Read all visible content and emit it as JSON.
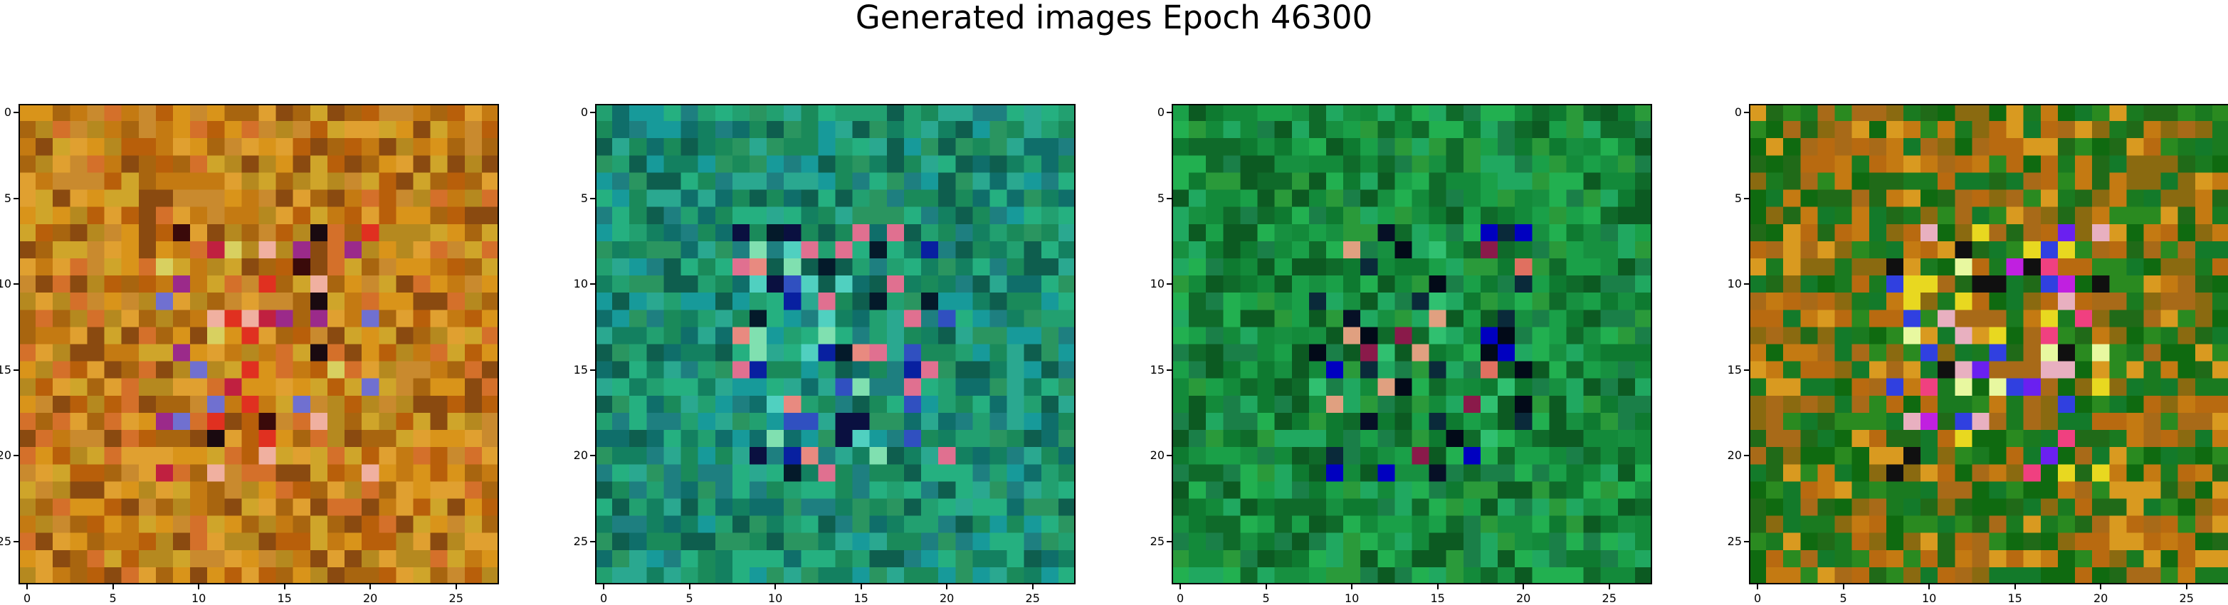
{
  "title": "Generated images Epoch 46300",
  "chart_data": [
    {
      "type": "heatmap",
      "grid": [
        28,
        28
      ],
      "xlim": [
        -0.5,
        27.5
      ],
      "ylim": [
        27.5,
        -0.5
      ],
      "xticks": [
        0,
        5,
        10,
        15,
        20,
        25
      ],
      "yticks": [
        0,
        5,
        10,
        15,
        20,
        25
      ],
      "xtick_labels": [
        "0",
        "5",
        "10",
        "15",
        "20",
        "25"
      ],
      "ytick_labels": [
        "0",
        "5",
        "10",
        "15",
        "20",
        "25"
      ],
      "palette": [
        "#c47a12",
        "#b85f0a",
        "#d9941a",
        "#a8650f",
        "#cfa52a",
        "#e0a030",
        "#8a4a10",
        "#c98a2e",
        "#d4702a",
        "#b5891f"
      ],
      "highlights": [
        "#3a0a0a",
        "#1a0a10",
        "#f0b0a0",
        "#9b2a8a",
        "#7070d0",
        "#e03020",
        "#c02040",
        "#d8d060"
      ],
      "seed": 11
    },
    {
      "type": "heatmap",
      "grid": [
        28,
        28
      ],
      "xlim": [
        -0.5,
        27.5
      ],
      "ylim": [
        27.5,
        -0.5
      ],
      "xticks": [
        0,
        5,
        10,
        15,
        20,
        25
      ],
      "yticks": [
        0,
        5,
        10,
        15,
        20,
        25
      ],
      "xtick_labels": [
        "0",
        "5",
        "10",
        "15",
        "20",
        "25"
      ],
      "ytick_labels": [
        "0",
        "5",
        "10",
        "15",
        "20",
        "25"
      ],
      "palette": [
        "#1a8a5a",
        "#138060",
        "#22a070",
        "#0f6e6a",
        "#2aa890",
        "#179a9a",
        "#0e5e4e",
        "#25b080",
        "#1e7f80",
        "#2a9560"
      ],
      "highlights": [
        "#041a2a",
        "#0a1040",
        "#e88a80",
        "#50d0c0",
        "#3050c0",
        "#e07090",
        "#0820a0",
        "#80e0b0"
      ],
      "seed": 23
    },
    {
      "type": "heatmap",
      "grid": [
        28,
        28
      ],
      "xlim": [
        -0.5,
        27.5
      ],
      "ylim": [
        27.5,
        -0.5
      ],
      "xticks": [
        0,
        5,
        10,
        15,
        20,
        25
      ],
      "yticks": [
        0,
        5,
        10,
        15,
        20,
        25
      ],
      "xtick_labels": [
        "0",
        "5",
        "10",
        "15",
        "20",
        "25"
      ],
      "ytick_labels": [
        "0",
        "5",
        "10",
        "15",
        "20",
        "25"
      ],
      "palette": [
        "#138a3a",
        "#0e7a30",
        "#1aa048",
        "#0f6a2a",
        "#22b050",
        "#179040",
        "#0c5a22",
        "#20a860",
        "#1a7f48",
        "#2a9a3a"
      ],
      "highlights": [
        "#020a18",
        "#061026",
        "#e07060",
        "#0000c0",
        "#8a1a4a",
        "#30c070",
        "#0a2a3a",
        "#e0a080"
      ],
      "seed": 37
    },
    {
      "type": "heatmap",
      "grid": [
        28,
        28
      ],
      "xlim": [
        -0.5,
        27.5
      ],
      "ylim": [
        27.5,
        -0.5
      ],
      "xticks": [
        0,
        5,
        10,
        15,
        20,
        25
      ],
      "yticks": [
        0,
        5,
        10,
        15,
        20,
        25
      ],
      "xtick_labels": [
        "0",
        "5",
        "10",
        "15",
        "20",
        "25"
      ],
      "ytick_labels": [
        "0",
        "5",
        "10",
        "15",
        "20",
        "25"
      ],
      "palette": [
        "#c47a12",
        "#b86a10",
        "#d99a20",
        "#a86a18",
        "#8a6a10",
        "#1a7a20",
        "#0f6a10",
        "#2a8a20",
        "#137a2a",
        "#206a18"
      ],
      "highlights": [
        "#e8d820",
        "#c020e0",
        "#6a20f0",
        "#e8f8a0",
        "#101010",
        "#f04080",
        "#3040e0",
        "#e8b0c0"
      ],
      "seed": 51
    }
  ]
}
